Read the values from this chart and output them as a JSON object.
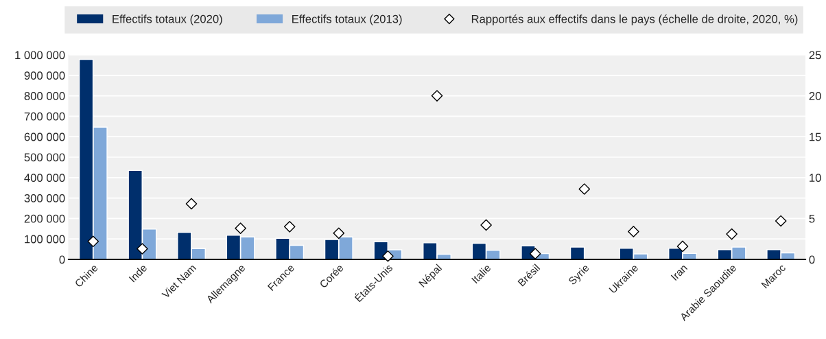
{
  "chart_data": {
    "type": "bar",
    "categories": [
      "Chine",
      "Inde",
      "Viet Nam",
      "Allemagne",
      "France",
      "Corée",
      "États-Unis",
      "Népal",
      "Italie",
      "Brésil",
      "Syrie",
      "Ukraine",
      "Iran",
      "Arabie Saoudite",
      "Maroc"
    ],
    "series": [
      {
        "name": "Effectifs totaux (2020)",
        "color": "#002f6c",
        "values": [
          978000,
          435000,
          132000,
          118000,
          103000,
          97000,
          86000,
          81000,
          79000,
          66000,
          60000,
          54000,
          54000,
          48000,
          48000
        ]
      },
      {
        "name": "Effectifs totaux (2013)",
        "color": "#7fa8d9",
        "values": [
          647000,
          148000,
          53000,
          110000,
          69000,
          110000,
          47000,
          25000,
          44000,
          28000,
          null,
          27000,
          29000,
          60000,
          32000
        ]
      },
      {
        "name": "Rapportés aux effectifs dans le pays (échelle de droite, 2020, %)",
        "type": "scatter",
        "axis": "y2",
        "marker": "diamond",
        "color": "#ffffff",
        "values": [
          2.2,
          1.3,
          6.8,
          3.8,
          4.0,
          3.2,
          0.4,
          20.0,
          4.2,
          0.7,
          8.6,
          3.4,
          1.6,
          3.1,
          4.7
        ]
      }
    ],
    "ylim": [
      0,
      1000000
    ],
    "yticks": [
      0,
      {
        "value": 100000,
        "label": "100 000"
      },
      {
        "value": 200000,
        "label": "200 000"
      },
      {
        "value": 300000,
        "label": "300 000"
      },
      {
        "value": 400000,
        "label": "400 000"
      },
      {
        "value": 500000,
        "label": "500 000"
      },
      {
        "value": 600000,
        "label": "600 000"
      },
      {
        "value": 700000,
        "label": "700 000"
      },
      {
        "value": 800000,
        "label": "800 000"
      },
      {
        "value": 900000,
        "label": "900 000"
      },
      {
        "value": 1000000,
        "label": "1 000 000"
      }
    ],
    "y2lim": [
      0,
      25
    ],
    "y2ticks": [
      0,
      5,
      10,
      15,
      20,
      25
    ],
    "grid": true,
    "legend": "top"
  }
}
